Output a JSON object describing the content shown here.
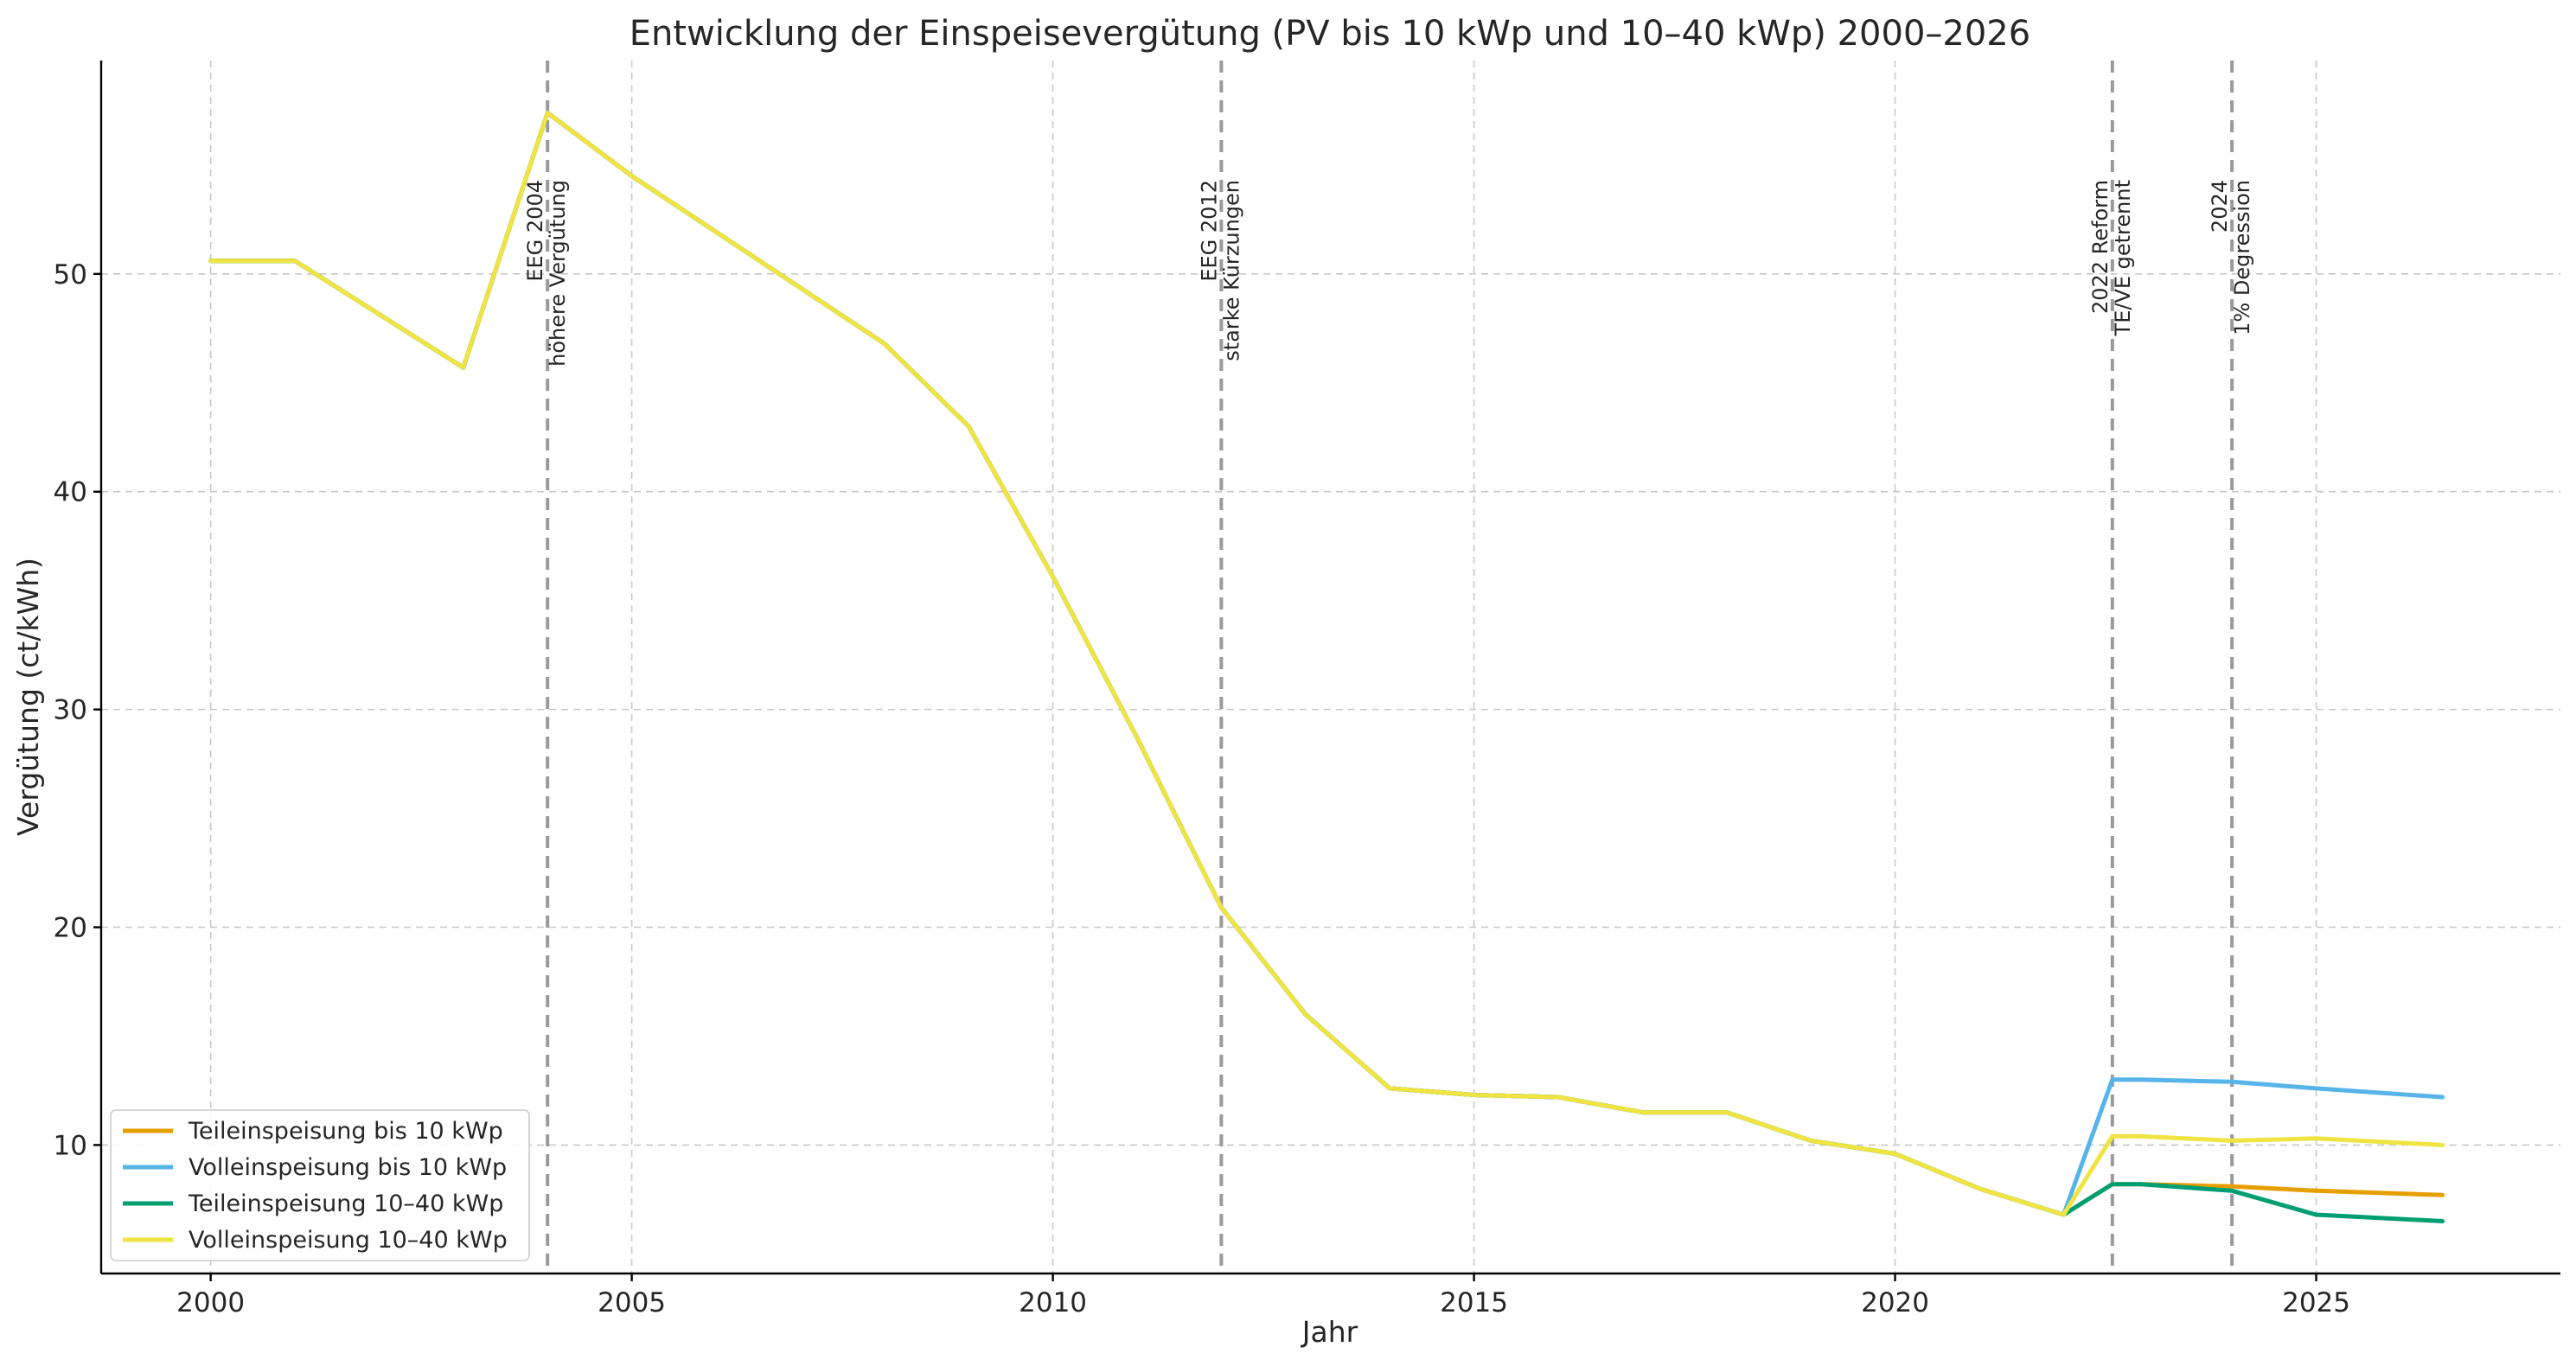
{
  "chart_data": {
    "type": "line",
    "title": "Entwicklung der Einspeisevergütung (PV bis 10 kWp und 10–40 kWp) 2000–2026",
    "xlabel": "Jahr",
    "ylabel": "Vergütung (ct/kWh)",
    "xlim": [
      1998.7,
      2027.9
    ],
    "ylim": [
      4.1,
      59.8
    ],
    "xticks": [
      2000,
      2005,
      2010,
      2015,
      2020,
      2025
    ],
    "yticks": [
      10,
      20,
      30,
      40,
      50
    ],
    "grid": true,
    "legend_position": "lower-left",
    "series": [
      {
        "name": "Teileinspeisung bis 10 kWp",
        "color": "#E69F00",
        "x": [
          2000,
          2001,
          2003,
          2004,
          2005,
          2008,
          2009,
          2010,
          2011,
          2012,
          2013,
          2014,
          2015,
          2016,
          2017,
          2018,
          2019,
          2020,
          2021,
          2022,
          2022.58,
          2022.92,
          2024,
          2025,
          2026.5
        ],
        "y": [
          50.6,
          50.6,
          45.7,
          57.4,
          54.5,
          46.8,
          43.0,
          36.1,
          28.7,
          20.9,
          16.0,
          12.6,
          12.3,
          12.2,
          11.5,
          11.5,
          10.2,
          9.6,
          8.0,
          6.8,
          8.2,
          8.2,
          8.1,
          7.9,
          7.7
        ]
      },
      {
        "name": "Volleinspeisung bis 10 kWp",
        "color": "#56B4E9",
        "x": [
          2000,
          2001,
          2003,
          2004,
          2005,
          2008,
          2009,
          2010,
          2011,
          2012,
          2013,
          2014,
          2015,
          2016,
          2017,
          2018,
          2019,
          2020,
          2021,
          2022,
          2022.58,
          2022.92,
          2024,
          2025,
          2026.5
        ],
        "y": [
          50.6,
          50.6,
          45.7,
          57.4,
          54.5,
          46.8,
          43.0,
          36.1,
          28.7,
          20.9,
          16.0,
          12.6,
          12.3,
          12.2,
          11.5,
          11.5,
          10.2,
          9.6,
          8.0,
          6.8,
          13.0,
          13.0,
          12.9,
          12.6,
          12.2
        ]
      },
      {
        "name": "Teileinspeisung 10–40 kWp",
        "color": "#009E73",
        "x": [
          2000,
          2001,
          2003,
          2004,
          2005,
          2008,
          2009,
          2010,
          2011,
          2012,
          2013,
          2014,
          2015,
          2016,
          2017,
          2018,
          2019,
          2020,
          2021,
          2022,
          2022.58,
          2022.92,
          2024,
          2025,
          2026.5
        ],
        "y": [
          50.6,
          50.6,
          45.7,
          57.4,
          54.5,
          46.8,
          43.0,
          36.1,
          28.7,
          20.9,
          16.0,
          12.6,
          12.3,
          12.2,
          11.5,
          11.5,
          10.2,
          9.6,
          8.0,
          6.8,
          8.2,
          8.2,
          7.9,
          6.8,
          6.5
        ]
      },
      {
        "name": "Volleinspeisung 10–40 kWp",
        "color": "#F0E442",
        "x": [
          2000,
          2001,
          2003,
          2004,
          2005,
          2008,
          2009,
          2010,
          2011,
          2012,
          2013,
          2014,
          2015,
          2016,
          2017,
          2018,
          2019,
          2020,
          2021,
          2022,
          2022.58,
          2022.92,
          2024,
          2025,
          2026.5
        ],
        "y": [
          50.6,
          50.6,
          45.7,
          57.4,
          54.5,
          46.8,
          43.0,
          36.1,
          28.7,
          20.9,
          16.0,
          12.6,
          12.3,
          12.2,
          11.5,
          11.5,
          10.2,
          9.6,
          8.0,
          6.8,
          10.4,
          10.4,
          10.2,
          10.3,
          10.0
        ]
      }
    ],
    "annotations": [
      {
        "x": 2004,
        "lines": [
          "EEG 2004",
          "höhere Vergütung"
        ]
      },
      {
        "x": 2012,
        "lines": [
          "EEG 2012",
          "starke Kürzungen"
        ]
      },
      {
        "x": 2022.58,
        "lines": [
          "2022 Reform",
          "TE/VE getrennt"
        ]
      },
      {
        "x": 2024,
        "lines": [
          "2024",
          "1% Degression"
        ]
      }
    ]
  }
}
